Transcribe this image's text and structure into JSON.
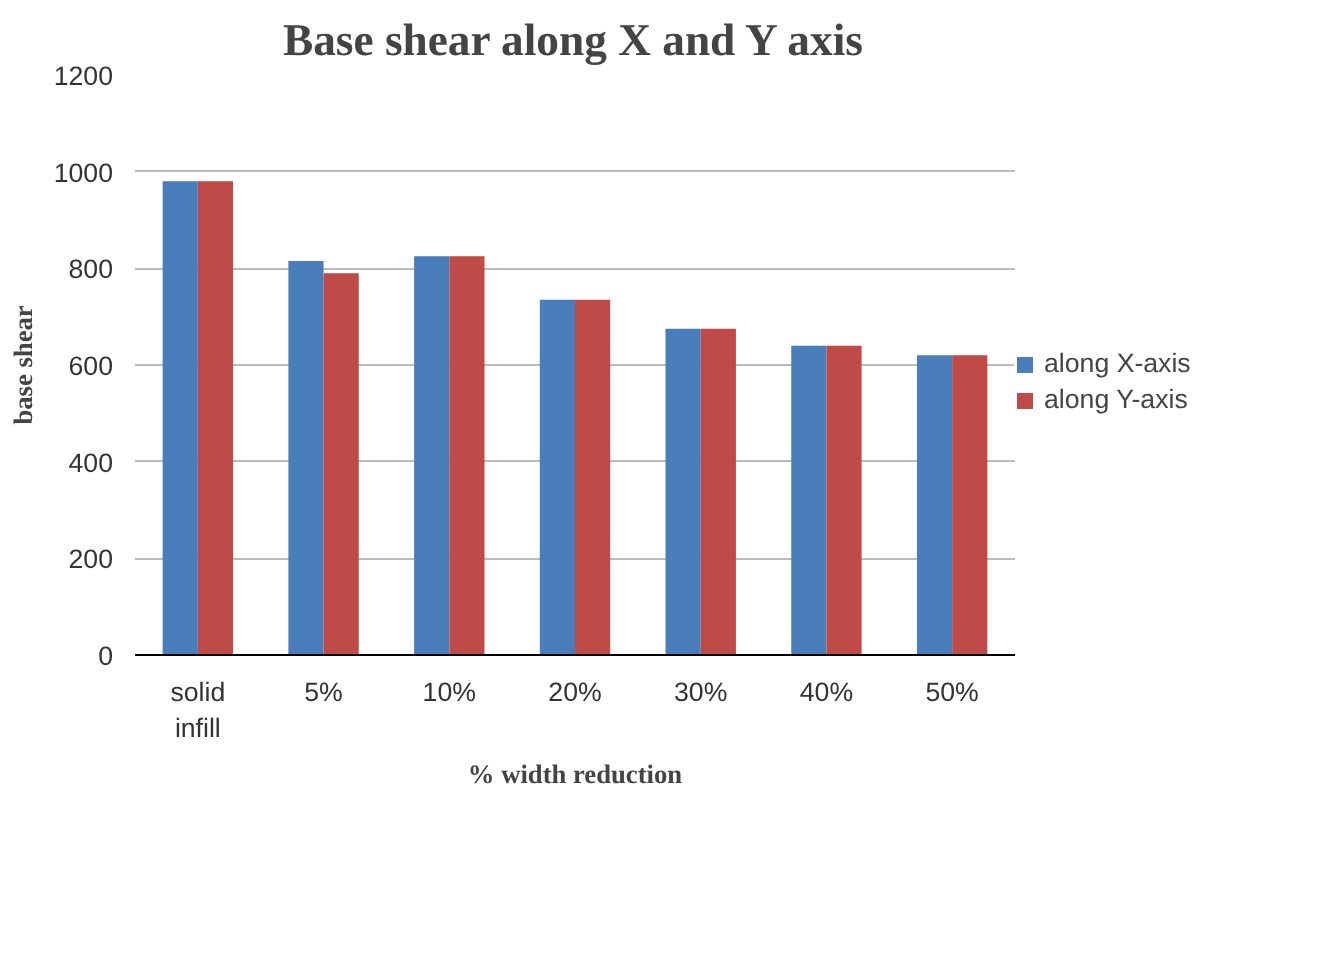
{
  "chart_data": {
    "type": "bar",
    "title": "Base shear along X and Y axis",
    "xlabel": "% width reduction",
    "ylabel": "base shear",
    "categories": [
      "solid\ninfill",
      "5%",
      "10%",
      "20%",
      "30%",
      "40%",
      "50%"
    ],
    "series": [
      {
        "name": "along X-axis",
        "color": "#4a7ebb",
        "values": [
          980,
          815,
          825,
          735,
          675,
          640,
          620
        ]
      },
      {
        "name": "along Y-axis",
        "color": "#be4b48",
        "values": [
          980,
          790,
          825,
          735,
          675,
          640,
          620
        ]
      }
    ],
    "ylim": [
      0,
      1200
    ],
    "yticks": [
      0,
      200,
      400,
      600,
      800,
      1000,
      1200
    ],
    "grid": "y",
    "legend": "right"
  }
}
